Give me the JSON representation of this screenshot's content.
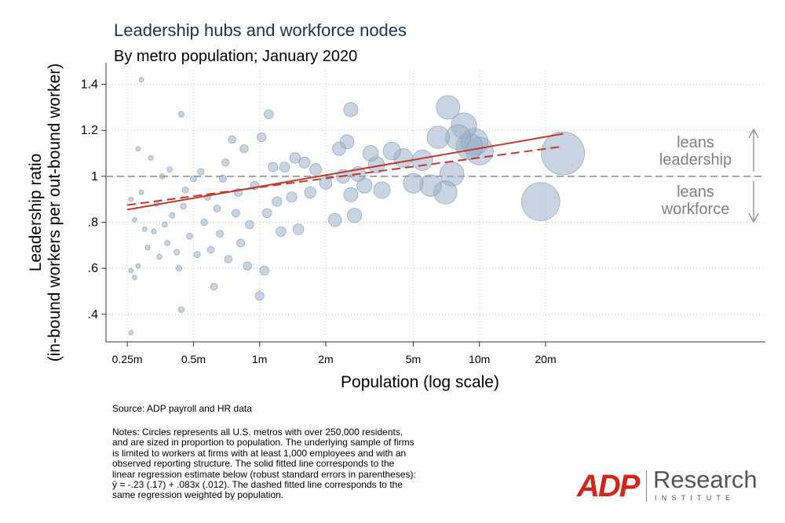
{
  "chart_data": {
    "type": "scatter",
    "title": "Leadership hubs and workforce nodes",
    "subtitle": "By metro population; January 2020",
    "xlabel": "Population (log scale)",
    "ylabel_lines": [
      "Leadership ratio",
      "(in-bound workers per out-bound worker)"
    ],
    "x_scale": "log",
    "xlim": [
      0.2,
      200
    ],
    "ylim": [
      0.28,
      1.46
    ],
    "x_ticks": [
      {
        "value": 0.25,
        "label": "0.25m"
      },
      {
        "value": 0.5,
        "label": "0.5m"
      },
      {
        "value": 1,
        "label": "1m"
      },
      {
        "value": 2,
        "label": "2m"
      },
      {
        "value": 5,
        "label": "5m"
      },
      {
        "value": 10,
        "label": "10m"
      },
      {
        "value": 20,
        "label": "20m"
      }
    ],
    "y_ticks": [
      {
        "value": 0.4,
        "label": ".4"
      },
      {
        "value": 0.6,
        "label": ".6"
      },
      {
        "value": 0.8,
        "label": ".8"
      },
      {
        "value": 1.0,
        "label": "1"
      },
      {
        "value": 1.2,
        "label": "1.2"
      },
      {
        "value": 1.4,
        "label": "1.4"
      }
    ],
    "grid": true,
    "reference_line_y": 1,
    "annotations": {
      "upper": [
        "leans",
        "leadership"
      ],
      "lower": [
        "leans",
        "workforce"
      ]
    },
    "fits": {
      "solid": {
        "x": [
          0.25,
          24
        ],
        "y": [
          0.855,
          1.185
        ]
      },
      "dashed": {
        "x": [
          0.25,
          24
        ],
        "y": [
          0.875,
          1.13
        ]
      }
    },
    "marker_color": "#9ab0c8",
    "fit_color": "#c0392b",
    "points": [
      {
        "x": 0.26,
        "y": 0.32
      },
      {
        "x": 0.26,
        "y": 0.59
      },
      {
        "x": 0.26,
        "y": 0.9
      },
      {
        "x": 0.27,
        "y": 0.81
      },
      {
        "x": 0.27,
        "y": 0.56
      },
      {
        "x": 0.28,
        "y": 1.12
      },
      {
        "x": 0.28,
        "y": 0.61
      },
      {
        "x": 0.29,
        "y": 1.42
      },
      {
        "x": 0.29,
        "y": 0.93
      },
      {
        "x": 0.3,
        "y": 0.77
      },
      {
        "x": 0.31,
        "y": 0.69
      },
      {
        "x": 0.32,
        "y": 1.08
      },
      {
        "x": 0.33,
        "y": 0.76
      },
      {
        "x": 0.34,
        "y": 0.88
      },
      {
        "x": 0.35,
        "y": 0.65
      },
      {
        "x": 0.36,
        "y": 1.0
      },
      {
        "x": 0.37,
        "y": 0.79
      },
      {
        "x": 0.38,
        "y": 0.71
      },
      {
        "x": 0.39,
        "y": 1.03
      },
      {
        "x": 0.4,
        "y": 0.83
      },
      {
        "x": 0.42,
        "y": 0.67
      },
      {
        "x": 0.43,
        "y": 0.6
      },
      {
        "x": 0.44,
        "y": 1.27
      },
      {
        "x": 0.44,
        "y": 0.42
      },
      {
        "x": 0.45,
        "y": 0.87
      },
      {
        "x": 0.46,
        "y": 0.94
      },
      {
        "x": 0.48,
        "y": 0.74
      },
      {
        "x": 0.5,
        "y": 0.99
      },
      {
        "x": 0.52,
        "y": 0.66
      },
      {
        "x": 0.54,
        "y": 1.02
      },
      {
        "x": 0.56,
        "y": 0.8
      },
      {
        "x": 0.58,
        "y": 0.91
      },
      {
        "x": 0.6,
        "y": 0.68
      },
      {
        "x": 0.62,
        "y": 0.52
      },
      {
        "x": 0.64,
        "y": 0.86
      },
      {
        "x": 0.66,
        "y": 0.75
      },
      {
        "x": 0.68,
        "y": 0.99
      },
      {
        "x": 0.7,
        "y": 1.06
      },
      {
        "x": 0.72,
        "y": 0.64
      },
      {
        "x": 0.75,
        "y": 1.16
      },
      {
        "x": 0.78,
        "y": 0.84
      },
      {
        "x": 0.8,
        "y": 0.93
      },
      {
        "x": 0.82,
        "y": 0.71
      },
      {
        "x": 0.85,
        "y": 1.12
      },
      {
        "x": 0.88,
        "y": 0.61
      },
      {
        "x": 0.9,
        "y": 0.79
      },
      {
        "x": 0.95,
        "y": 0.96
      },
      {
        "x": 1.0,
        "y": 0.48
      },
      {
        "x": 1.02,
        "y": 1.17
      },
      {
        "x": 1.05,
        "y": 0.59
      },
      {
        "x": 1.08,
        "y": 0.84
      },
      {
        "x": 1.1,
        "y": 1.27
      },
      {
        "x": 1.15,
        "y": 1.04
      },
      {
        "x": 1.2,
        "y": 0.89
      },
      {
        "x": 1.25,
        "y": 0.76
      },
      {
        "x": 1.3,
        "y": 1.04
      },
      {
        "x": 1.4,
        "y": 0.91
      },
      {
        "x": 1.45,
        "y": 1.08
      },
      {
        "x": 1.5,
        "y": 0.77
      },
      {
        "x": 1.6,
        "y": 1.06
      },
      {
        "x": 1.7,
        "y": 0.93
      },
      {
        "x": 1.8,
        "y": 1.03
      },
      {
        "x": 2.0,
        "y": 0.97
      },
      {
        "x": 2.2,
        "y": 0.81
      },
      {
        "x": 2.3,
        "y": 1.12
      },
      {
        "x": 2.4,
        "y": 1.0
      },
      {
        "x": 2.5,
        "y": 1.15
      },
      {
        "x": 2.6,
        "y": 1.29
      },
      {
        "x": 2.6,
        "y": 0.92
      },
      {
        "x": 2.7,
        "y": 0.83
      },
      {
        "x": 2.8,
        "y": 1.01
      },
      {
        "x": 3.0,
        "y": 0.96
      },
      {
        "x": 3.2,
        "y": 1.1
      },
      {
        "x": 3.4,
        "y": 1.05
      },
      {
        "x": 3.6,
        "y": 0.94
      },
      {
        "x": 4.0,
        "y": 1.11
      },
      {
        "x": 4.5,
        "y": 1.08
      },
      {
        "x": 5.0,
        "y": 0.97
      },
      {
        "x": 5.5,
        "y": 1.07
      },
      {
        "x": 6.0,
        "y": 0.96
      },
      {
        "x": 6.5,
        "y": 1.17
      },
      {
        "x": 7.0,
        "y": 0.93
      },
      {
        "x": 7.2,
        "y": 1.3
      },
      {
        "x": 7.5,
        "y": 1.01
      },
      {
        "x": 8.0,
        "y": 1.17
      },
      {
        "x": 8.5,
        "y": 1.22
      },
      {
        "x": 9.0,
        "y": 1.13
      },
      {
        "x": 9.5,
        "y": 1.15
      },
      {
        "x": 10.0,
        "y": 1.11
      },
      {
        "x": 19.0,
        "y": 0.89
      },
      {
        "x": 24.0,
        "y": 1.1
      }
    ]
  },
  "source": "Source: ADP payroll and HR data",
  "notes_lines": [
    "Notes: Circles represents all U.S. metros with over 250,000 residents,",
    "and are sized in proportion to population. The underlying sample of firms",
    "is limited to workers at firms with at least 1,000 employees and with an",
    "observed reporting structure. The solid fitted line corresponds to the",
    "linear regression estimate below (robust standard errors in parentheses):",
    "ŷ = -.23 (.17) + .083x (.012). The dashed fitted line corresponds to the",
    "same regression weighted by population."
  ],
  "logo": {
    "mark": "ADP",
    "word": "Research",
    "sub": "INSTITUTE",
    "trademark": "®",
    "color": "#d0271d"
  }
}
